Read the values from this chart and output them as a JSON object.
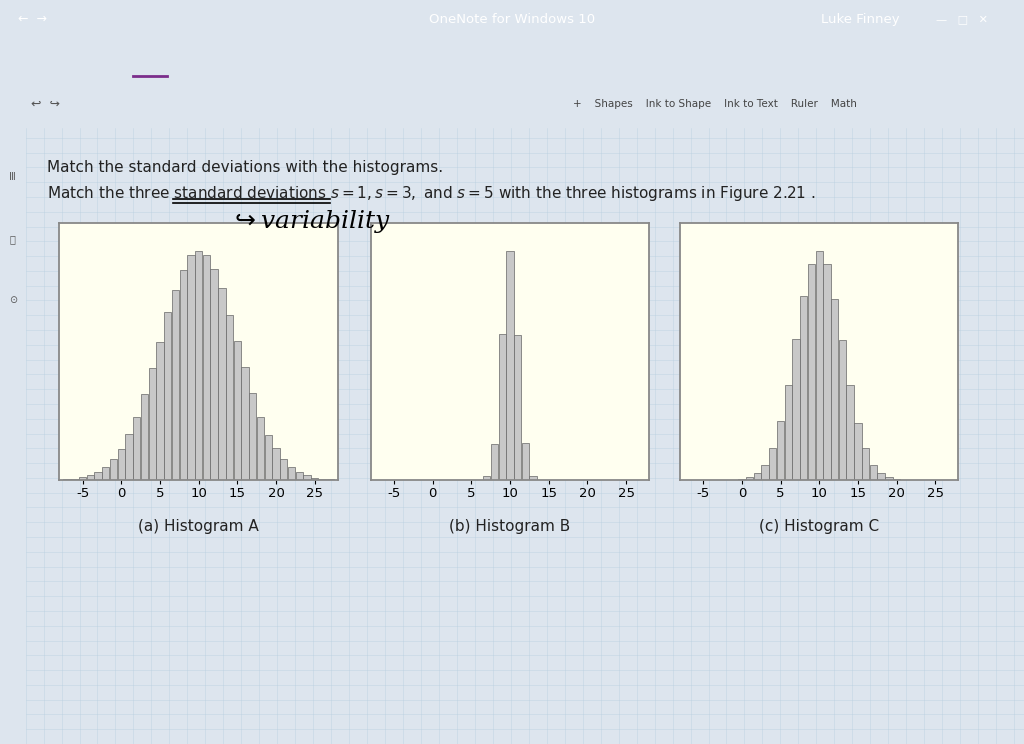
{
  "title_line1": "Match the standard deviations with the histograms.",
  "title_line2": "Match the three standard deviations ",
  "title_line2b": " with the three histograms in Figure 2.21 .",
  "math_part": "s = 1, s = 3, and s = 5",
  "histograms": [
    {
      "label": "(a) Histogram A",
      "mean": 10,
      "std": 5,
      "xticks": [
        -5,
        0,
        5,
        10,
        15,
        20,
        25
      ]
    },
    {
      "label": "(b) Histogram B",
      "mean": 10,
      "std": 1,
      "xticks": [
        -5,
        0,
        5,
        10,
        15,
        20,
        25
      ]
    },
    {
      "label": "(c) Histogram C",
      "mean": 10,
      "std": 3,
      "xticks": [
        -5,
        0,
        5,
        10,
        15,
        20,
        25
      ]
    }
  ],
  "bar_color": "#c8c8c8",
  "bar_edge_color": "#666666",
  "hist_bg": "#fffff0",
  "hist_border": "#888888",
  "page_bg": "#dde5ee",
  "grid_color": "#b8cfe0",
  "toolbar_bg": "#7b2d8b",
  "ribbon_bg": "#f0f0f0",
  "titlebar_bg": "#6b1f7a",
  "text_color": "#222222",
  "n_samples": 200000,
  "bin_width": 1,
  "xlim": [
    -8,
    28
  ],
  "ylim": [
    0,
    1.12
  ]
}
